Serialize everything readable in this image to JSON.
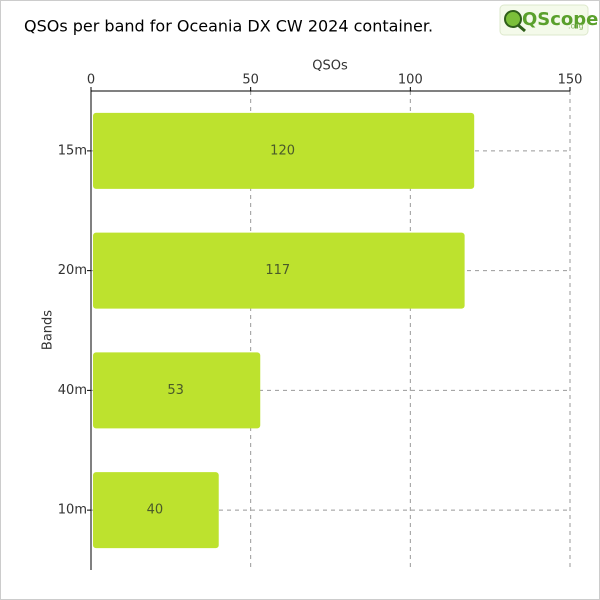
{
  "logo": {
    "text": "QScope",
    "suffix": ".org"
  },
  "chart_data": {
    "type": "hbar",
    "title": "QSOs per band for Oceania DX CW 2024 container.",
    "x_label": "QSOs",
    "y_label": "Bands",
    "categories": [
      "15m",
      "20m",
      "40m",
      "10m"
    ],
    "values": [
      120,
      117,
      53,
      40
    ],
    "color": "#bde22e",
    "xlim": [
      0,
      150
    ],
    "xticks": [
      0,
      50,
      100,
      150
    ],
    "grid": true
  }
}
